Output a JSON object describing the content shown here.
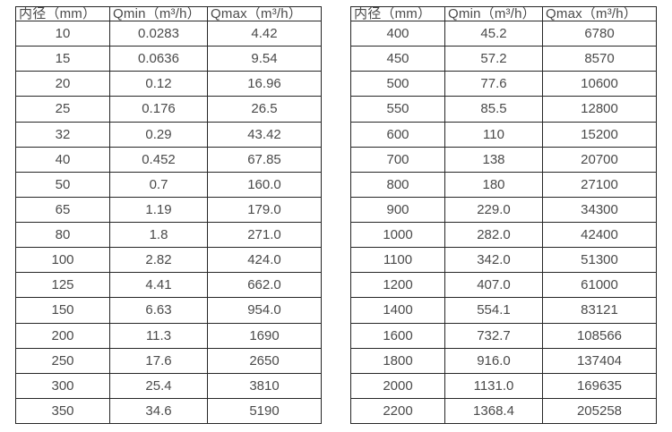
{
  "colors": {
    "background": "#ffffff",
    "border": "#262626",
    "text": "#4a4a4a"
  },
  "tables": [
    {
      "name": "flow-range-table-small-diameters",
      "headers": [
        "内径（mm）",
        "Qmin（m³/h）",
        "Qmax（m³/h）"
      ],
      "rows": [
        [
          "10",
          "0.0283",
          "4.42"
        ],
        [
          "15",
          "0.0636",
          "9.54"
        ],
        [
          "20",
          "0.12",
          "16.96"
        ],
        [
          "25",
          "0.176",
          "26.5"
        ],
        [
          "32",
          "0.29",
          "43.42"
        ],
        [
          "40",
          "0.452",
          "67.85"
        ],
        [
          "50",
          "0.7",
          "160.0"
        ],
        [
          "65",
          "1.19",
          "179.0"
        ],
        [
          "80",
          "1.8",
          "271.0"
        ],
        [
          "100",
          "2.82",
          "424.0"
        ],
        [
          "125",
          "4.41",
          "662.0"
        ],
        [
          "150",
          "6.63",
          "954.0"
        ],
        [
          "200",
          "11.3",
          "1690"
        ],
        [
          "250",
          "17.6",
          "2650"
        ],
        [
          "300",
          "25.4",
          "3810"
        ],
        [
          "350",
          "34.6",
          "5190"
        ]
      ]
    },
    {
      "name": "flow-range-table-large-diameters",
      "headers": [
        "内径（mm）",
        "Qmin（m³/h）",
        "Qmax（m³/h）"
      ],
      "rows": [
        [
          "400",
          "45.2",
          "6780"
        ],
        [
          "450",
          "57.2",
          "8570"
        ],
        [
          "500",
          "77.6",
          "10600"
        ],
        [
          "550",
          "85.5",
          "12800"
        ],
        [
          "600",
          "110",
          "15200"
        ],
        [
          "700",
          "138",
          "20700"
        ],
        [
          "800",
          "180",
          "27100"
        ],
        [
          "900",
          "229.0",
          "34300"
        ],
        [
          "1000",
          "282.0",
          "42400"
        ],
        [
          "1100",
          "342.0",
          "51300"
        ],
        [
          "1200",
          "407.0",
          "61000"
        ],
        [
          "1400",
          "554.1",
          "83121"
        ],
        [
          "1600",
          "732.7",
          "108566"
        ],
        [
          "1800",
          "916.0",
          "137404"
        ],
        [
          "2000",
          "1131.0",
          "169635"
        ],
        [
          "2200",
          "1368.4",
          "205258"
        ]
      ]
    }
  ]
}
